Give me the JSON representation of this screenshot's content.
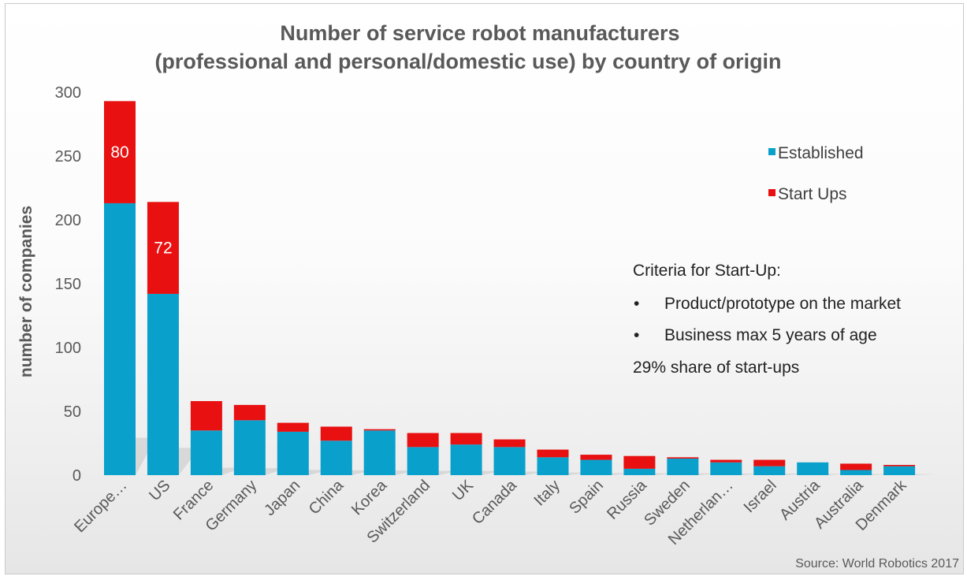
{
  "colors": {
    "established": "#0aa0cc",
    "startups": "#e81010"
  },
  "chart_data": {
    "type": "bar",
    "stacked": true,
    "title_lines": [
      "Number of service robot manufacturers",
      "(professional and personal/domestic use) by country of origin"
    ],
    "ylabel": "number of companies",
    "ylim": [
      0,
      300
    ],
    "yticks": [
      0,
      50,
      100,
      150,
      200,
      250,
      300
    ],
    "categories": [
      "Europe…",
      "US",
      "France",
      "Germany",
      "Japan",
      "China",
      "Korea",
      "Switzerland",
      "UK",
      "Canada",
      "Italy",
      "Spain",
      "Russia",
      "Sweden",
      "Netherlan…",
      "Israel",
      "Austria",
      "Australia",
      "Denmark"
    ],
    "series": [
      {
        "name": "Established",
        "values": [
          213,
          142,
          35,
          43,
          34,
          27,
          35,
          22,
          24,
          22,
          14,
          12,
          5,
          13,
          10,
          7,
          10,
          4,
          7
        ]
      },
      {
        "name": "Start Ups",
        "values": [
          80,
          72,
          23,
          12,
          7,
          11,
          1,
          11,
          9,
          6,
          6,
          4,
          10,
          1,
          2,
          5,
          0,
          5,
          1
        ]
      }
    ],
    "data_labels": [
      {
        "category": "Europe…",
        "series": "Start Ups",
        "text": "80"
      },
      {
        "category": "US",
        "series": "Start Ups",
        "text": "72"
      }
    ],
    "legend_position": "right",
    "grid": false
  },
  "note": {
    "heading": "Criteria for Start-Up:",
    "bullet_char": "•",
    "bullets": [
      "Product/prototype on the market",
      "Business max 5 years of age"
    ],
    "footer": "29% share of start-ups"
  },
  "source": "Source: World Robotics 2017"
}
